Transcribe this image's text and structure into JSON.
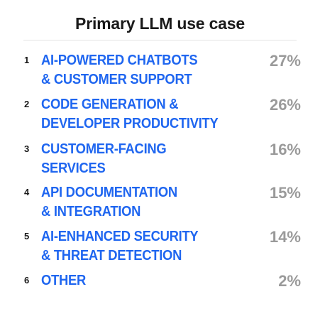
{
  "chart_data": {
    "type": "table",
    "title": "Primary LLM use case",
    "rows": [
      {
        "rank": "1",
        "label_lines": [
          "AI-POWERED CHATBOTS",
          "& CUSTOMER SUPPORT"
        ],
        "value": 27,
        "value_label": "27%"
      },
      {
        "rank": "2",
        "label_lines": [
          "CODE GENERATION &",
          "DEVELOPER PRODUCTIVITY"
        ],
        "value": 26,
        "value_label": "26%"
      },
      {
        "rank": "3",
        "label_lines": [
          "CUSTOMER-FACING",
          "SERVICES"
        ],
        "value": 16,
        "value_label": "16%"
      },
      {
        "rank": "4",
        "label_lines": [
          "API DOCUMENTATION",
          "& INTEGRATION"
        ],
        "value": 15,
        "value_label": "15%"
      },
      {
        "rank": "5",
        "label_lines": [
          "AI-ENHANCED SECURITY",
          "& THREAT DETECTION"
        ],
        "value": 14,
        "value_label": "14%"
      },
      {
        "rank": "6",
        "label_lines": [
          "OTHER"
        ],
        "value": 2,
        "value_label": "2%"
      }
    ],
    "colors": {
      "label": "#1f66f0",
      "value": "#9a9a9a",
      "rank": "#1a1a1a",
      "title": "#1a1a1a"
    }
  }
}
